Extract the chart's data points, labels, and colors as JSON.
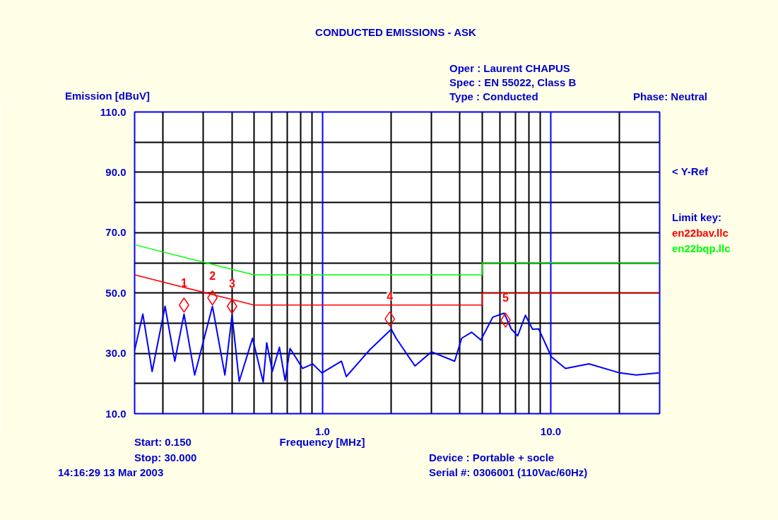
{
  "chart_data": {
    "type": "line",
    "title": "CONDUCTED EMISSIONS - ASK",
    "xlabel": "Frequency [MHz]",
    "ylabel": "Emission [dBuV]",
    "legend_title": "Limit key:",
    "log": "x",
    "grid": true,
    "xlim": [
      0.15,
      30
    ],
    "ylim": [
      10,
      110
    ],
    "xticks": [
      {
        "value": 0.2,
        "label": null
      },
      {
        "value": 0.3,
        "label": null
      },
      {
        "value": 0.4,
        "label": null
      },
      {
        "value": 0.5,
        "label": null
      },
      {
        "value": 0.6,
        "label": null
      },
      {
        "value": 0.7,
        "label": null
      },
      {
        "value": 0.8,
        "label": null
      },
      {
        "value": 0.9,
        "label": null
      },
      {
        "value": 1,
        "label": "1.0"
      },
      {
        "value": 2,
        "label": null
      },
      {
        "value": 3,
        "label": null
      },
      {
        "value": 4,
        "label": null
      },
      {
        "value": 5,
        "label": null
      },
      {
        "value": 6,
        "label": null
      },
      {
        "value": 7,
        "label": null
      },
      {
        "value": 8,
        "label": null
      },
      {
        "value": 9,
        "label": null
      },
      {
        "value": 10,
        "label": "10.0"
      },
      {
        "value": 20,
        "label": null
      }
    ],
    "yticks": [
      {
        "value": 10,
        "label": "10.0"
      },
      {
        "value": 20,
        "label": null
      },
      {
        "value": 30,
        "label": "30.0"
      },
      {
        "value": 40,
        "label": null
      },
      {
        "value": 50,
        "label": "50.0"
      },
      {
        "value": 60,
        "label": null
      },
      {
        "value": 70,
        "label": "70.0"
      },
      {
        "value": 80,
        "label": null
      },
      {
        "value": 90,
        "label": "90.0"
      },
      {
        "value": 100,
        "label": null
      },
      {
        "value": 110,
        "label": "110.0"
      }
    ],
    "series": [
      {
        "color": "#0000ff",
        "x": [
          0.15,
          0.163,
          0.179,
          0.204,
          0.225,
          0.247,
          0.275,
          0.329,
          0.373,
          0.401,
          0.431,
          0.493,
          0.549,
          0.569,
          0.602,
          0.647,
          0.685,
          0.72,
          0.818,
          0.904,
          0.993,
          1.21,
          1.27,
          1.61,
          2.0,
          2.1,
          2.54,
          3.0,
          3.79,
          4.07,
          4.5,
          4.94,
          5.57,
          6.25,
          6.71,
          7.16,
          7.74,
          8.32,
          8.85,
          10.07,
          11.6,
          14.7,
          20.1,
          23.7,
          29.8
        ],
        "values": [
          31,
          43,
          24,
          45.6,
          27.4,
          43,
          22.8,
          45.6,
          22.8,
          42.6,
          20.7,
          35,
          20.5,
          33.5,
          24,
          32,
          21,
          31.6,
          25,
          26.5,
          23.5,
          27.4,
          22.3,
          31.2,
          38,
          35,
          25.8,
          30.5,
          27.4,
          35,
          37,
          34.4,
          42,
          43.3,
          38.1,
          35.8,
          42.6,
          38,
          38.1,
          28.8,
          25,
          26.5,
          23.5,
          22.8,
          23.5
        ]
      },
      {
        "type": "line",
        "name": "en22bav.llc",
        "color": "#ff0000",
        "x": [
          0.15,
          0.5,
          5,
          5,
          30
        ],
        "values": [
          56,
          46,
          46,
          50,
          50
        ]
      },
      {
        "type": "line",
        "name": "en22bqp.llc",
        "color": "#00ff00",
        "x": [
          0.15,
          0.5,
          5,
          5,
          30
        ],
        "values": [
          66,
          56,
          56,
          60,
          60
        ]
      },
      {
        "type": "scatter",
        "marker": "diamond",
        "color": "#ff0000",
        "x": [
          0.247,
          0.329,
          0.401,
          1.97,
          6.34
        ],
        "values": [
          46,
          48.4,
          45.6,
          41.4,
          41
        ]
      }
    ],
    "annotations": [
      "< Y-Ref",
      "Oper : Laurent CHAPUS",
      "Spec : EN 55022, Class B",
      "Type : Conducted",
      "Phase: Neutral",
      "Start: 0.150",
      "Stop: 30.000",
      "14:16:29 13 Mar 2003",
      "Device : Portable + socle",
      "Serial #: 0306001 (110Vac/60Hz)",
      {
        "text": "1",
        "x": 0.247,
        "y": 46
      },
      {
        "text": "2",
        "x": 0.329,
        "y": 48.4
      },
      {
        "text": "3",
        "x": 0.401,
        "y": 45.6
      },
      {
        "text": "4",
        "x": 1.97,
        "y": 41.4
      },
      {
        "text": "5",
        "x": 6.34,
        "y": 41
      }
    ]
  }
}
